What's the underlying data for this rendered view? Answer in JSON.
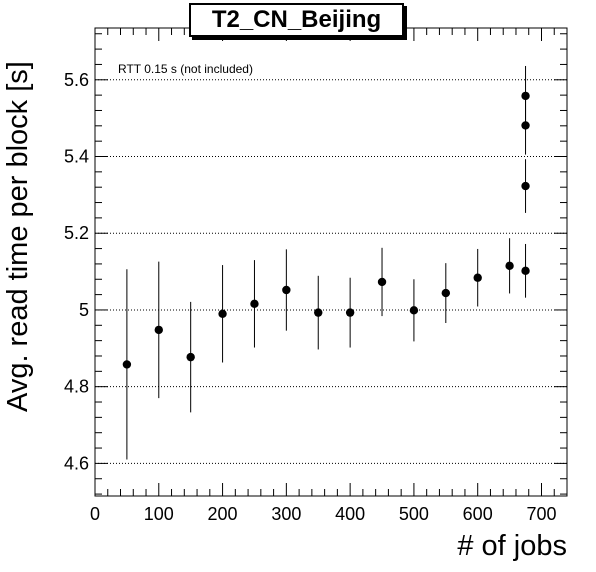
{
  "chart_data": {
    "type": "scatter",
    "title": "T2_CN_Beijing",
    "xlabel": "# of jobs",
    "ylabel": "Avg. read time per block [s]",
    "annotation": "RTT 0.15 s (not included)",
    "xlim": [
      0,
      740
    ],
    "ylim": [
      4.515,
      5.735
    ],
    "x_ticks": [
      0,
      100,
      200,
      300,
      400,
      500,
      600,
      700
    ],
    "x_tick_labels": [
      "0",
      "100",
      "200",
      "300",
      "400",
      "500",
      "600",
      "700"
    ],
    "y_ticks": [
      4.6,
      4.8,
      5.0,
      5.2,
      5.4,
      5.6
    ],
    "y_tick_labels": [
      "4.6",
      "4.8",
      "5",
      "5.2",
      "5.4",
      "5.6"
    ],
    "grid": "horizontal dotted at y major ticks",
    "marker_color": "#000000",
    "points": [
      {
        "x": 50,
        "y": 4.858,
        "err": 0.248
      },
      {
        "x": 100,
        "y": 4.948,
        "err": 0.178
      },
      {
        "x": 150,
        "y": 4.877,
        "err": 0.144
      },
      {
        "x": 200,
        "y": 4.99,
        "err": 0.127
      },
      {
        "x": 250,
        "y": 5.016,
        "err": 0.114
      },
      {
        "x": 300,
        "y": 5.052,
        "err": 0.106
      },
      {
        "x": 350,
        "y": 4.993,
        "err": 0.096
      },
      {
        "x": 400,
        "y": 4.993,
        "err": 0.091
      },
      {
        "x": 450,
        "y": 5.073,
        "err": 0.089
      },
      {
        "x": 500,
        "y": 4.999,
        "err": 0.081
      },
      {
        "x": 550,
        "y": 5.044,
        "err": 0.078
      },
      {
        "x": 600,
        "y": 5.084,
        "err": 0.075
      },
      {
        "x": 650,
        "y": 5.115,
        "err": 0.072
      },
      {
        "x": 675,
        "y": 5.102,
        "err": 0.07
      },
      {
        "x": 675,
        "y": 5.323,
        "err": 0.07
      },
      {
        "x": 675,
        "y": 5.481,
        "err": 0.076
      },
      {
        "x": 675,
        "y": 5.558,
        "err": 0.078
      }
    ]
  }
}
